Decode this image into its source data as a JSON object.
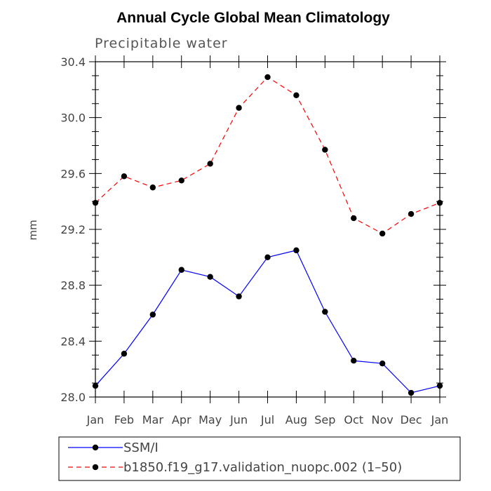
{
  "chart_data": {
    "type": "line",
    "title": "Annual Cycle Global Mean Climatology",
    "subtitle": "Precipitable water",
    "xlabel": "",
    "ylabel": "mm",
    "categories": [
      "Jan",
      "Feb",
      "Mar",
      "Apr",
      "May",
      "Jun",
      "Jul",
      "Aug",
      "Sep",
      "Oct",
      "Nov",
      "Dec",
      "Jan"
    ],
    "ylim": [
      28.0,
      30.4
    ],
    "yticks": [
      "28.0",
      "28.4",
      "28.8",
      "29.2",
      "29.6",
      "30.0",
      "30.4"
    ],
    "series": [
      {
        "name": "SSM/I",
        "color": "#0000ff",
        "dash": "solid",
        "values": [
          28.08,
          28.31,
          28.59,
          28.91,
          28.86,
          28.72,
          29.0,
          29.05,
          28.61,
          28.26,
          28.24,
          28.03,
          28.08
        ]
      },
      {
        "name": "b1850.f19_g17.validation_nuopc.002 (1–50)",
        "color": "#ff0000",
        "dash": "dashed",
        "values": [
          29.39,
          29.58,
          29.5,
          29.55,
          29.67,
          30.07,
          30.29,
          30.16,
          29.77,
          29.28,
          29.17,
          29.31,
          29.39
        ]
      }
    ]
  }
}
